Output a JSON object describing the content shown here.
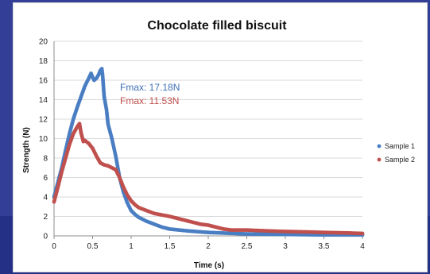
{
  "chart_data": {
    "type": "scatter",
    "title": "Chocolate filled biscuit",
    "xlabel": "Time (s)",
    "ylabel": "Strength (N)",
    "xlim": [
      0,
      4
    ],
    "ylim": [
      0,
      20
    ],
    "x_ticks": [
      "0",
      "0.5",
      "1",
      "1.5",
      "2",
      "2.5",
      "3",
      "3.5",
      "4"
    ],
    "y_ticks": [
      "0",
      "2",
      "4",
      "6",
      "8",
      "10",
      "12",
      "14",
      "16",
      "18",
      "20"
    ],
    "grid": "horizontal",
    "legend_position": "right",
    "annotations": [
      {
        "text": "Fmax: 17.18N",
        "color": "#3e6fb5"
      },
      {
        "text": "Fmax: 11.53N",
        "color": "#c0504d"
      }
    ],
    "series": [
      {
        "name": "Sample 1",
        "color": "#4a7ec3",
        "x": [
          0.0,
          0.05,
          0.1,
          0.15,
          0.2,
          0.25,
          0.3,
          0.35,
          0.4,
          0.45,
          0.48,
          0.5,
          0.52,
          0.55,
          0.58,
          0.6,
          0.62,
          0.63,
          0.65,
          0.68,
          0.7,
          0.75,
          0.8,
          0.85,
          0.9,
          0.95,
          1.0,
          1.05,
          1.1,
          1.2,
          1.3,
          1.4,
          1.5,
          1.75,
          2.0,
          2.5,
          3.0,
          3.5,
          4.0
        ],
        "y": [
          4.0,
          5.5,
          7.0,
          8.8,
          10.5,
          12.0,
          13.2,
          14.3,
          15.4,
          16.2,
          16.7,
          16.3,
          16.0,
          16.2,
          16.6,
          17.0,
          17.18,
          16.5,
          14.3,
          13.0,
          11.5,
          10.0,
          8.2,
          6.0,
          4.5,
          3.4,
          2.6,
          2.2,
          1.9,
          1.5,
          1.2,
          0.9,
          0.7,
          0.5,
          0.35,
          0.2,
          0.15,
          0.1,
          0.1
        ]
      },
      {
        "name": "Sample 2",
        "color": "#c0504d",
        "x": [
          0.0,
          0.05,
          0.1,
          0.15,
          0.2,
          0.25,
          0.3,
          0.33,
          0.35,
          0.38,
          0.4,
          0.45,
          0.5,
          0.55,
          0.6,
          0.65,
          0.7,
          0.75,
          0.8,
          0.85,
          0.9,
          0.95,
          1.0,
          1.05,
          1.1,
          1.2,
          1.3,
          1.5,
          1.7,
          1.9,
          2.0,
          2.1,
          2.2,
          2.3,
          2.5,
          2.8,
          3.0,
          3.3,
          3.5,
          3.8,
          4.0
        ],
        "y": [
          3.5,
          5.0,
          6.6,
          8.0,
          9.4,
          10.5,
          11.2,
          11.53,
          10.6,
          9.7,
          9.8,
          9.5,
          9.0,
          8.2,
          7.5,
          7.3,
          7.2,
          7.0,
          6.8,
          6.0,
          5.0,
          4.2,
          3.6,
          3.2,
          2.9,
          2.6,
          2.3,
          2.0,
          1.6,
          1.2,
          1.1,
          0.9,
          0.7,
          0.6,
          0.6,
          0.5,
          0.45,
          0.4,
          0.35,
          0.3,
          0.25
        ]
      }
    ]
  }
}
